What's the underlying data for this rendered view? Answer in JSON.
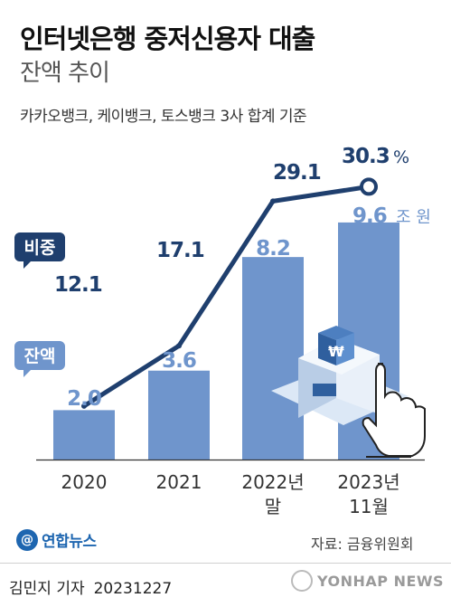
{
  "header": {
    "title": "인터넷은행 중저신용자 대출",
    "subtitle": "잔액 추이",
    "note": "카카오뱅크, 케이뱅크, 토스뱅크 3사 합계 기준"
  },
  "chart_data": {
    "type": "bar",
    "categories": [
      "2020",
      "2021",
      "2022년 말",
      "2023년 11월"
    ],
    "series": [
      {
        "name": "잔액",
        "values": [
          2.0,
          3.6,
          8.2,
          9.6
        ],
        "kind": "bar",
        "unit": "조 원",
        "color": "#6f95cc"
      },
      {
        "name": "비중",
        "values": [
          12.1,
          17.1,
          29.1,
          30.3
        ],
        "kind": "line",
        "unit": "%",
        "color": "#1f3f6e"
      }
    ],
    "value_labels": {
      "bars": [
        "2.0",
        "3.6",
        "8.2",
        "9.6"
      ],
      "line": [
        "12.1",
        "17.1",
        "29.1",
        "30.3"
      ],
      "bar_unit": "조 원",
      "line_unit": "%"
    },
    "category_labels": [
      [
        "2020"
      ],
      [
        "2021"
      ],
      [
        "2022년",
        "말"
      ],
      [
        "2023년",
        "11월"
      ]
    ],
    "legend": [
      "비중",
      "잔액"
    ],
    "grid": false
  },
  "footer": {
    "agency": "연합뉴스",
    "source": "자료: 금융위원회",
    "reporter": "김민지 기자",
    "date": "20231227",
    "watermark": "YONHAP NEWS"
  }
}
